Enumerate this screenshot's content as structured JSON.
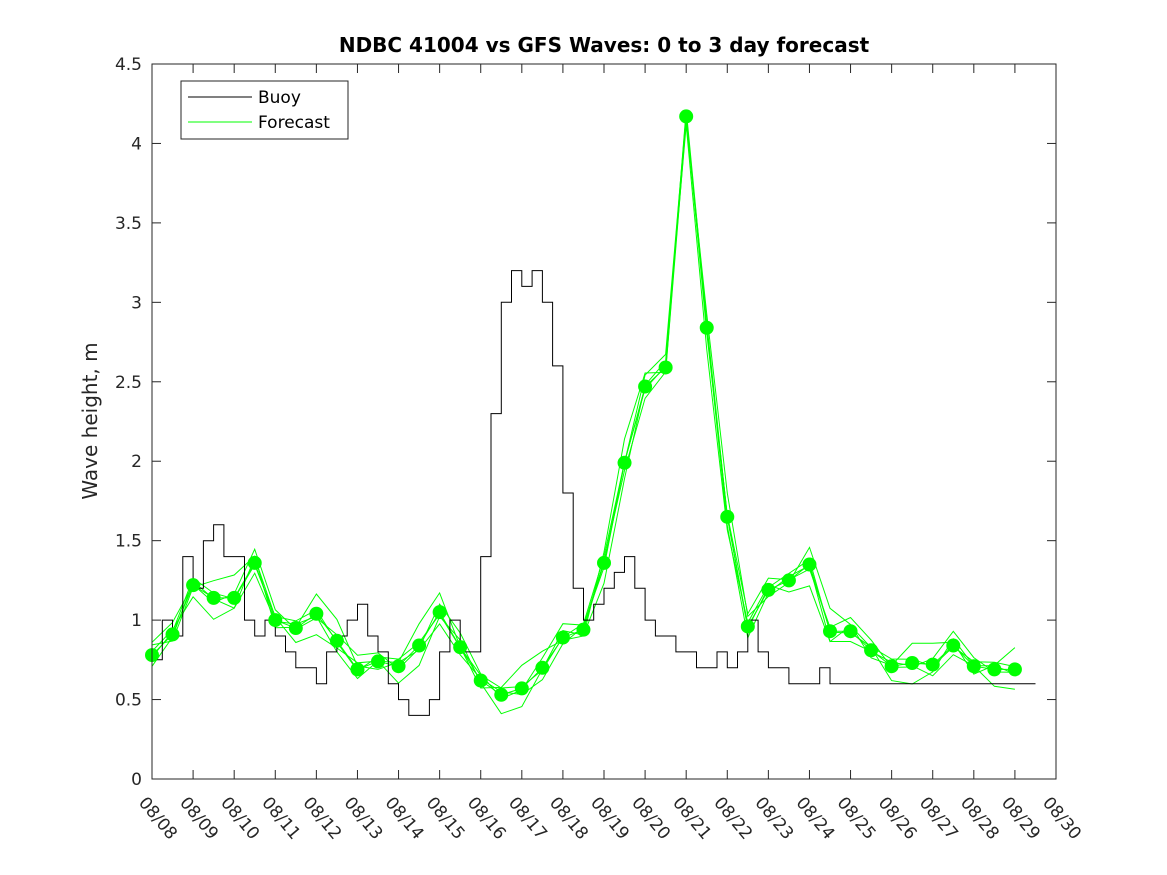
{
  "chart_data": {
    "type": "line",
    "title": "NDBC 41004 vs GFS Waves: 0 to 3 day forecast",
    "xlabel": "",
    "ylabel": "Wave height, m",
    "ylim": [
      0,
      4.5
    ],
    "yticks": [
      "0",
      "0.5",
      "1",
      "1.5",
      "2",
      "2.5",
      "3",
      "3.5",
      "4",
      "4.5"
    ],
    "xlim": [
      0,
      22
    ],
    "xticks": [
      "08/08",
      "08/09",
      "08/10",
      "08/11",
      "08/12",
      "08/13",
      "08/14",
      "08/15",
      "08/16",
      "08/17",
      "08/18",
      "08/19",
      "08/20",
      "08/21",
      "08/22",
      "08/23",
      "08/24",
      "08/25",
      "08/26",
      "08/27",
      "08/28",
      "08/29",
      "08/30"
    ],
    "legend_position": "top-left",
    "grid": false,
    "colors": {
      "buoy": "#000000",
      "forecast": "#00ff00"
    },
    "series": [
      {
        "name": "Buoy",
        "style": "step-line",
        "x": [
          0,
          0.25,
          0.5,
          0.75,
          1,
          1.25,
          1.5,
          1.75,
          2,
          2.25,
          2.5,
          2.75,
          3,
          3.25,
          3.5,
          3.75,
          4,
          4.25,
          4.5,
          4.75,
          5,
          5.25,
          5.5,
          5.75,
          6,
          6.25,
          6.5,
          6.75,
          7,
          7.25,
          7.5,
          7.75,
          8,
          8.25,
          8.5,
          8.75,
          9,
          9.25,
          9.5,
          9.75,
          10,
          10.25,
          10.5,
          10.75,
          11,
          11.25,
          11.5,
          11.75,
          12,
          12.25,
          12.5,
          12.75,
          13,
          13.25,
          13.5,
          13.75,
          14,
          14.25,
          14.5,
          14.75,
          15,
          15.25,
          15.5,
          15.75,
          16,
          16.25,
          16.5,
          16.75,
          17,
          17.25,
          17.5,
          17.75,
          18,
          18.25,
          18.5,
          18.75,
          19,
          19.25,
          19.5,
          19.75,
          20,
          20.25,
          20.5,
          20.75,
          21,
          21.25,
          21.5
        ],
        "values": [
          0.75,
          1.0,
          0.9,
          1.4,
          1.2,
          1.5,
          1.6,
          1.4,
          1.4,
          1.0,
          0.9,
          1.0,
          0.9,
          0.8,
          0.7,
          0.7,
          0.6,
          0.8,
          0.9,
          1.0,
          1.1,
          0.9,
          0.8,
          0.6,
          0.5,
          0.4,
          0.4,
          0.5,
          0.8,
          1.0,
          0.8,
          0.8,
          1.4,
          2.3,
          3.0,
          3.2,
          3.1,
          3.2,
          3.0,
          2.6,
          1.8,
          1.2,
          1.0,
          1.1,
          1.2,
          1.3,
          1.4,
          1.2,
          1.0,
          0.9,
          0.9,
          0.8,
          0.8,
          0.7,
          0.7,
          0.8,
          0.7,
          0.8,
          1.0,
          0.8,
          0.7,
          0.7,
          0.6,
          0.6,
          0.6,
          0.7,
          0.6,
          0.6,
          0.6,
          0.6,
          0.6,
          0.6,
          0.6,
          0.6,
          0.6,
          0.6,
          0.6,
          0.6,
          0.6,
          0.6,
          0.6,
          0.6,
          0.6,
          0.6,
          0.6,
          0.6,
          0.6
        ]
      },
      {
        "name": "Forecast",
        "style": "line-with-markers",
        "x": [
          0,
          0.5,
          1,
          1.5,
          2,
          2.5,
          3,
          3.5,
          4,
          4.5,
          5,
          5.5,
          6,
          6.5,
          7,
          7.5,
          8,
          8.5,
          9,
          9.5,
          10,
          10.5,
          11,
          11.5,
          12,
          12.5,
          13,
          13.5,
          14,
          14.5,
          15,
          15.5,
          16,
          16.5,
          17,
          17.5,
          18,
          18.5,
          19,
          19.5,
          20,
          20.5,
          21
        ],
        "values": [
          0.78,
          0.91,
          1.22,
          1.14,
          1.14,
          1.36,
          1.0,
          0.95,
          1.04,
          0.87,
          0.69,
          0.74,
          0.71,
          0.84,
          1.05,
          0.83,
          0.62,
          0.53,
          0.57,
          0.7,
          0.89,
          0.94,
          1.36,
          1.99,
          2.47,
          2.59,
          4.17,
          2.84,
          1.65,
          0.96,
          1.19,
          1.25,
          1.35,
          0.93,
          0.93,
          0.81,
          0.71,
          0.73,
          0.72,
          0.84,
          0.71,
          0.69,
          0.69
        ]
      }
    ]
  }
}
